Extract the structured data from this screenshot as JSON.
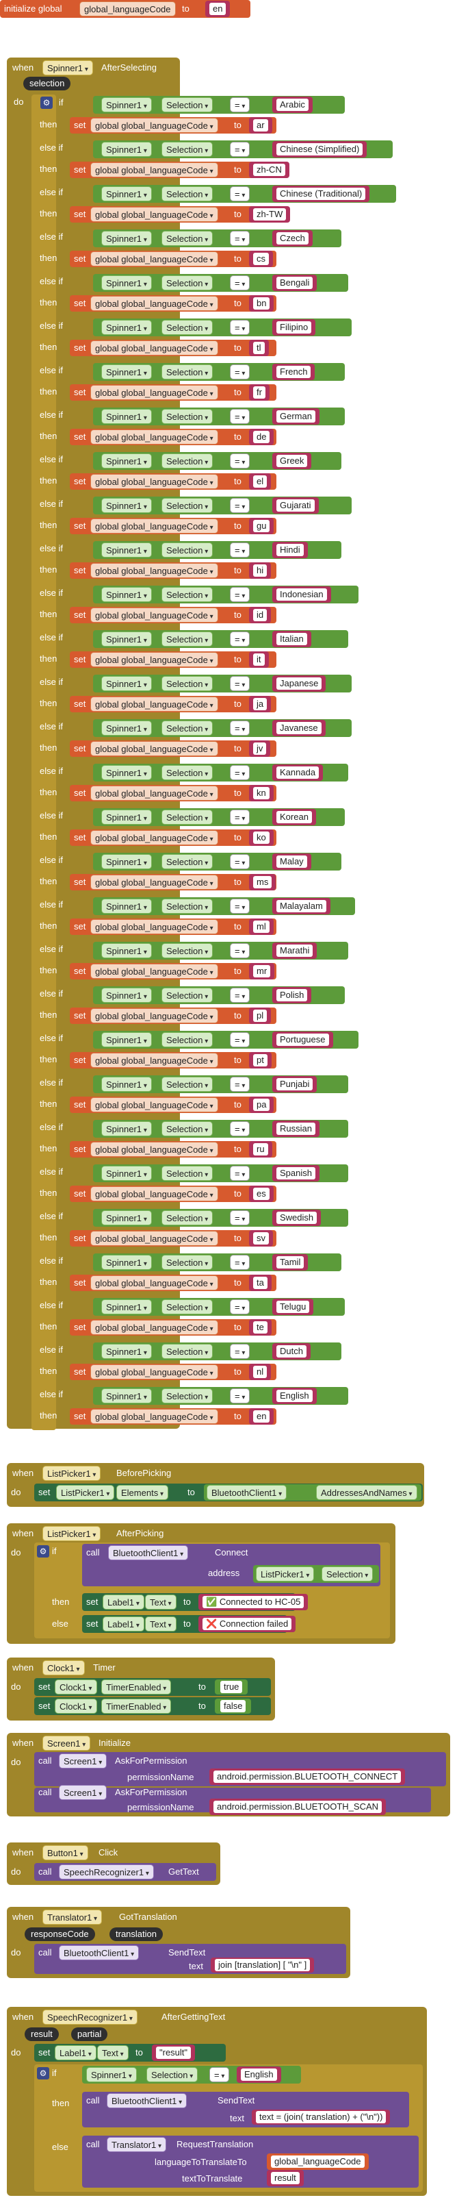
{
  "init": {
    "prefix": "initialize global",
    "var_name": "global_languageCode",
    "to": "to",
    "value": "en"
  },
  "spinner_event": {
    "when": "when",
    "component": "Spinner1",
    "event": "AfterSelecting",
    "param": "selection",
    "do": "do",
    "if": "if",
    "else_if": "else if",
    "then": "then",
    "set": "set",
    "to": "to",
    "selection_label": "Selection",
    "eq": "=",
    "var": "global global_languageCode",
    "rows": [
      {
        "name": "Arabic",
        "code": "ar"
      },
      {
        "name": "Chinese (Simplified)",
        "code": "zh-CN"
      },
      {
        "name": "Chinese (Traditional)",
        "code": "zh-TW"
      },
      {
        "name": "Czech",
        "code": "cs"
      },
      {
        "name": "Bengali",
        "code": "bn"
      },
      {
        "name": "Filipino",
        "code": "tl"
      },
      {
        "name": "French",
        "code": "fr"
      },
      {
        "name": "German",
        "code": "de"
      },
      {
        "name": "Greek",
        "code": "el"
      },
      {
        "name": "Gujarati",
        "code": "gu"
      },
      {
        "name": "Hindi",
        "code": "hi"
      },
      {
        "name": "Indonesian",
        "code": "id"
      },
      {
        "name": "Italian",
        "code": "it"
      },
      {
        "name": "Japanese",
        "code": "ja"
      },
      {
        "name": "Javanese",
        "code": "jv"
      },
      {
        "name": "Kannada",
        "code": "kn"
      },
      {
        "name": "Korean",
        "code": "ko"
      },
      {
        "name": "Malay",
        "code": "ms"
      },
      {
        "name": "Malayalam",
        "code": "ml"
      },
      {
        "name": "Marathi",
        "code": "mr"
      },
      {
        "name": "Polish",
        "code": "pl"
      },
      {
        "name": "Portuguese",
        "code": "pt"
      },
      {
        "name": "Punjabi",
        "code": "pa"
      },
      {
        "name": "Russian",
        "code": "ru"
      },
      {
        "name": "Spanish",
        "code": "es"
      },
      {
        "name": "Swedish",
        "code": "sv"
      },
      {
        "name": "Tamil",
        "code": "ta"
      },
      {
        "name": "Telugu",
        "code": "te"
      },
      {
        "name": "Dutch",
        "code": "nl"
      },
      {
        "name": "English",
        "code": "en"
      }
    ]
  },
  "listpicker_before": {
    "when": "when",
    "component": "ListPicker1",
    "event": "BeforePicking",
    "do": "do",
    "set": "set",
    "target": "ListPicker1",
    "property": "Elements",
    "to": "to",
    "value_component": "BluetoothClient1",
    "value_property": "AddressesAndNames"
  },
  "listpicker_after": {
    "when": "when",
    "component": "ListPicker1",
    "event": "AfterPicking",
    "do": "do",
    "if": "if",
    "call": "call",
    "client": "BluetoothClient1",
    "method": "Connect",
    "address_label": "address",
    "address_component": "ListPicker1",
    "address_property": "Selection",
    "then": "then",
    "else": "else",
    "set": "set",
    "label": "Label1",
    "property": "Text",
    "to": "to",
    "connected_text": "Connected to HC-05",
    "failed_text": "Connection failed"
  },
  "clock": {
    "when": "when",
    "component": "Clock1",
    "event": "Timer",
    "do": "do",
    "set": "set",
    "target": "Clock1",
    "property": "TimerEnabled",
    "to": "to",
    "value1": "true",
    "value2": "false"
  },
  "screen": {
    "when": "when",
    "component": "Screen1",
    "event": "Initialize",
    "do": "do",
    "call": "call",
    "target": "Screen1",
    "method": "AskForPermission",
    "param_label": "permissionName",
    "perm1": "android.permission.BLUETOOTH_CONNECT",
    "perm2": "android.permission.BLUETOOTH_SCAN"
  },
  "button": {
    "when": "when",
    "component": "Button1",
    "event": "Click",
    "do": "do",
    "call": "call",
    "target": "SpeechRecognizer1",
    "method": "GetText"
  },
  "translator": {
    "when": "when",
    "component": "Translator1",
    "event": "GotTranslation",
    "param1": "responseCode",
    "param2": "translation",
    "do": "do",
    "call": "call",
    "target": "BluetoothClient1",
    "method": "SendText",
    "text_label": "text",
    "text_value": "join [translation] [ \"\\n\" ]"
  },
  "speech": {
    "when": "when",
    "component": "SpeechRecognizer1",
    "event": "AfterGettingText",
    "param1": "result",
    "param2": "partial",
    "do": "do",
    "set": "set",
    "label": "Label1",
    "property": "Text",
    "to": "to",
    "result_value": "\"result\"",
    "if": "if",
    "spinner": "Spinner1",
    "selection": "Selection",
    "eq": "=",
    "english": "English",
    "then": "then",
    "call": "call",
    "client": "BluetoothClient1",
    "send_method": "SendText",
    "text_label": "text",
    "text_value": "text = (join( translation) + (\"\\n\"))",
    "else": "else",
    "translator": "Translator1",
    "request_method": "RequestTranslation",
    "lang_label": "languageToTranslateTo",
    "lang_value": "global_languageCode",
    "totranslate_label": "textToTranslate",
    "result": "result"
  }
}
